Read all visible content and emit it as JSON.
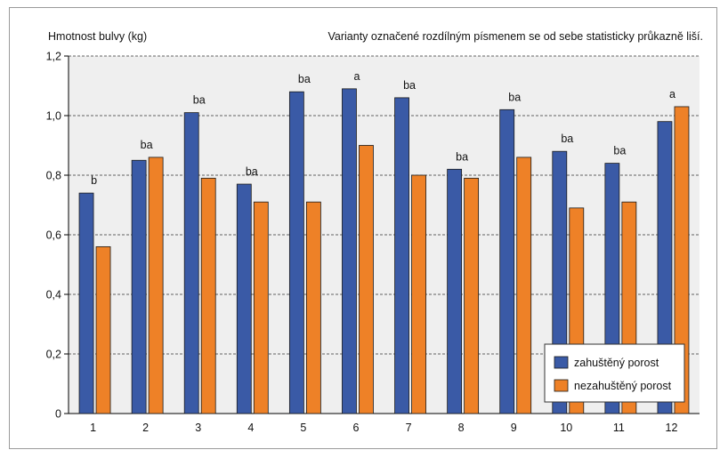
{
  "chart_data": {
    "type": "bar",
    "ylabel": "Hmotnost bulvy (kg)",
    "annotation": "Varianty označené rozdílným písmenem se od sebe statisticky průkazně liší.",
    "categories": [
      "1",
      "2",
      "3",
      "4",
      "5",
      "6",
      "7",
      "8",
      "9",
      "10",
      "11",
      "12"
    ],
    "ylim": [
      0,
      1.2
    ],
    "yticks": [
      "0",
      "0,2",
      "0,4",
      "0,6",
      "0,8",
      "1,0",
      "1,2"
    ],
    "grid": true,
    "legend_position": "bottom-right",
    "series": [
      {
        "name": "zahuštěný porost",
        "color": "#3a5aa6",
        "values": [
          0.74,
          0.85,
          1.01,
          0.77,
          1.08,
          1.09,
          1.06,
          0.82,
          1.02,
          0.88,
          0.84,
          0.98
        ]
      },
      {
        "name": "nezahuštěný porost",
        "color": "#ee8127",
        "values": [
          0.56,
          0.86,
          0.79,
          0.71,
          0.71,
          0.9,
          0.8,
          0.79,
          0.86,
          0.69,
          0.71,
          1.03
        ]
      }
    ],
    "letters": [
      "b",
      "ba",
      "ba",
      "ba",
      "ba",
      "a",
      "ba",
      "ba",
      "ba",
      "ba",
      "ba",
      "a"
    ],
    "plot_background": "#efefef"
  }
}
